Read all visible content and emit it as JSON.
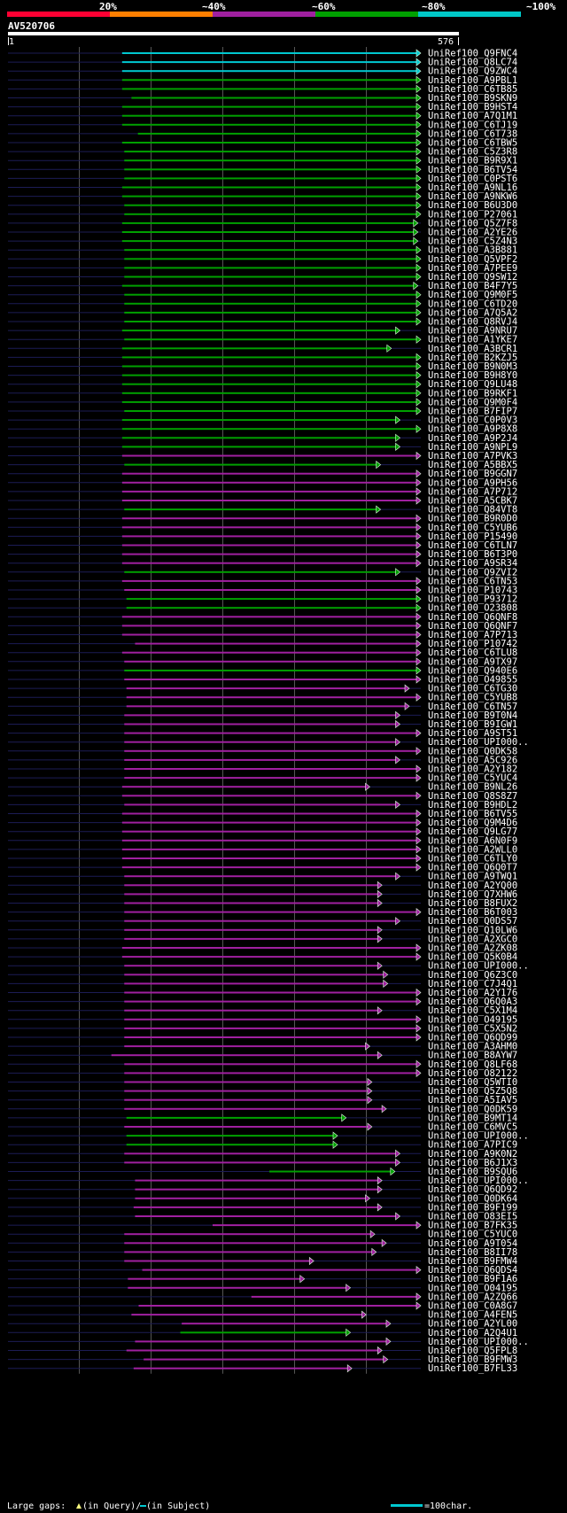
{
  "query": {
    "name": "AV520706",
    "start_label": "1",
    "end_label": "576",
    "length": 576
  },
  "legend_scale": {
    "labels": [
      "20%",
      "~40%",
      "~60%",
      "~80%",
      "~100%"
    ],
    "colors": [
      "#ff0033",
      "#ff7f00",
      "#a020a0",
      "#00a000",
      "#00c8c8"
    ]
  },
  "footer": {
    "gaps_text": "Large gaps: ",
    "query_text": "(in Query)/",
    "subject_text": " (in Subject)",
    "scale_text": "=100char."
  },
  "colors": {
    "bg": "#000000",
    "track": "#1c1c55",
    "grid": "#555555",
    "cyan": "#00c8d0",
    "green": "#00a000",
    "purple": "#a020a0"
  },
  "chart_data": {
    "type": "alignment-hits",
    "x_range": [
      1,
      576
    ],
    "hits": [
      {
        "name": "UniRef100_Q9FNC4",
        "start": 160,
        "end": 576,
        "color": "cyan"
      },
      {
        "name": "UniRef100_Q8LC74",
        "start": 160,
        "end": 576,
        "color": "cyan"
      },
      {
        "name": "UniRef100_Q9ZWC4",
        "start": 160,
        "end": 576,
        "color": "cyan"
      },
      {
        "name": "UniRef100_A9PBL1",
        "start": 160,
        "end": 576,
        "color": "green"
      },
      {
        "name": "UniRef100_C6TB85",
        "start": 160,
        "end": 576,
        "color": "green"
      },
      {
        "name": "UniRef100_B9SKN9",
        "start": 173,
        "end": 576,
        "color": "green"
      },
      {
        "name": "UniRef100_B9HST4",
        "start": 160,
        "end": 576,
        "color": "green"
      },
      {
        "name": "UniRef100_A7Q1M1",
        "start": 160,
        "end": 576,
        "color": "green"
      },
      {
        "name": "UniRef100_C6TJ19",
        "start": 160,
        "end": 576,
        "color": "green"
      },
      {
        "name": "UniRef100_C6T738",
        "start": 182,
        "end": 576,
        "color": "green"
      },
      {
        "name": "UniRef100_C6TBW5",
        "start": 160,
        "end": 576,
        "color": "green"
      },
      {
        "name": "UniRef100_C5Z3R8",
        "start": 163,
        "end": 576,
        "color": "green"
      },
      {
        "name": "UniRef100_B9R9X1",
        "start": 163,
        "end": 576,
        "color": "green"
      },
      {
        "name": "UniRef100_B6TV54",
        "start": 163,
        "end": 576,
        "color": "green"
      },
      {
        "name": "UniRef100_C0PST6",
        "start": 163,
        "end": 576,
        "color": "green"
      },
      {
        "name": "UniRef100_A9NL16",
        "start": 160,
        "end": 576,
        "color": "green"
      },
      {
        "name": "UniRef100_A9NKW6",
        "start": 160,
        "end": 576,
        "color": "green"
      },
      {
        "name": "UniRef100_B6U3D0",
        "start": 163,
        "end": 576,
        "color": "green"
      },
      {
        "name": "UniRef100_P27061",
        "start": 163,
        "end": 576,
        "color": "green"
      },
      {
        "name": "UniRef100_Q5Z7F8",
        "start": 160,
        "end": 572,
        "color": "green"
      },
      {
        "name": "UniRef100_A2YE26",
        "start": 160,
        "end": 572,
        "color": "green"
      },
      {
        "name": "UniRef100_C5Z4N3",
        "start": 160,
        "end": 572,
        "color": "green"
      },
      {
        "name": "UniRef100_A3B881",
        "start": 163,
        "end": 576,
        "color": "green"
      },
      {
        "name": "UniRef100_Q5VPF2",
        "start": 163,
        "end": 576,
        "color": "green"
      },
      {
        "name": "UniRef100_A7PEE9",
        "start": 163,
        "end": 576,
        "color": "green"
      },
      {
        "name": "UniRef100_Q9SW12",
        "start": 163,
        "end": 576,
        "color": "green"
      },
      {
        "name": "UniRef100_B4F7Y5",
        "start": 160,
        "end": 572,
        "color": "green"
      },
      {
        "name": "UniRef100_Q9M0F5",
        "start": 163,
        "end": 576,
        "color": "green"
      },
      {
        "name": "UniRef100_C6TD20",
        "start": 163,
        "end": 576,
        "color": "green"
      },
      {
        "name": "UniRef100_A7Q5A2",
        "start": 163,
        "end": 576,
        "color": "green"
      },
      {
        "name": "UniRef100_Q8RVJ4",
        "start": 163,
        "end": 576,
        "color": "green"
      },
      {
        "name": "UniRef100_A9NRU7",
        "start": 160,
        "end": 547,
        "color": "green"
      },
      {
        "name": "UniRef100_A1YKE7",
        "start": 163,
        "end": 576,
        "color": "green"
      },
      {
        "name": "UniRef100_A3BCR1",
        "start": 160,
        "end": 535,
        "color": "green"
      },
      {
        "name": "UniRef100_B2KZJ5",
        "start": 160,
        "end": 576,
        "color": "green"
      },
      {
        "name": "UniRef100_B9N0M3",
        "start": 160,
        "end": 576,
        "color": "green"
      },
      {
        "name": "UniRef100_B9H8Y0",
        "start": 160,
        "end": 576,
        "color": "green"
      },
      {
        "name": "UniRef100_Q9LU48",
        "start": 160,
        "end": 576,
        "color": "green"
      },
      {
        "name": "UniRef100_B9RKF1",
        "start": 160,
        "end": 576,
        "color": "green"
      },
      {
        "name": "UniRef100_Q9M0F4",
        "start": 160,
        "end": 576,
        "color": "green"
      },
      {
        "name": "UniRef100_B7FIP7",
        "start": 163,
        "end": 576,
        "color": "green"
      },
      {
        "name": "UniRef100_C0P0V3",
        "start": 160,
        "end": 547,
        "color": "green"
      },
      {
        "name": "UniRef100_A9P8X8",
        "start": 160,
        "end": 576,
        "color": "green"
      },
      {
        "name": "UniRef100_A9P2J4",
        "start": 160,
        "end": 547,
        "color": "green"
      },
      {
        "name": "UniRef100_A9NPL9",
        "start": 160,
        "end": 547,
        "color": "green"
      },
      {
        "name": "UniRef100_A7PVK3",
        "start": 160,
        "end": 576,
        "color": "purple"
      },
      {
        "name": "UniRef100_A5BBX5",
        "start": 163,
        "end": 520,
        "color": "green"
      },
      {
        "name": "UniRef100_B9GGN7",
        "start": 160,
        "end": 576,
        "color": "purple"
      },
      {
        "name": "UniRef100_A9PH56",
        "start": 160,
        "end": 576,
        "color": "purple"
      },
      {
        "name": "UniRef100_A7P712",
        "start": 160,
        "end": 576,
        "color": "purple"
      },
      {
        "name": "UniRef100_A5CBK7",
        "start": 160,
        "end": 576,
        "color": "purple"
      },
      {
        "name": "UniRef100_Q84VT8",
        "start": 163,
        "end": 520,
        "color": "green"
      },
      {
        "name": "UniRef100_B9R0D0",
        "start": 160,
        "end": 576,
        "color": "purple"
      },
      {
        "name": "UniRef100_C5YUB6",
        "start": 160,
        "end": 576,
        "color": "purple"
      },
      {
        "name": "UniRef100_P15490",
        "start": 160,
        "end": 576,
        "color": "purple"
      },
      {
        "name": "UniRef100_C6TLN7",
        "start": 160,
        "end": 576,
        "color": "purple"
      },
      {
        "name": "UniRef100_B6T3P0",
        "start": 160,
        "end": 576,
        "color": "purple"
      },
      {
        "name": "UniRef100_A9SR34",
        "start": 160,
        "end": 576,
        "color": "purple"
      },
      {
        "name": "UniRef100_Q9ZVI2",
        "start": 163,
        "end": 547,
        "color": "green"
      },
      {
        "name": "UniRef100_C6TN53",
        "start": 160,
        "end": 576,
        "color": "purple"
      },
      {
        "name": "UniRef100_P10743",
        "start": 163,
        "end": 576,
        "color": "purple"
      },
      {
        "name": "UniRef100_P93712",
        "start": 166,
        "end": 576,
        "color": "green"
      },
      {
        "name": "UniRef100_O23808",
        "start": 166,
        "end": 576,
        "color": "green"
      },
      {
        "name": "UniRef100_Q6QNF8",
        "start": 160,
        "end": 576,
        "color": "purple"
      },
      {
        "name": "UniRef100_Q6QNF7",
        "start": 160,
        "end": 576,
        "color": "purple"
      },
      {
        "name": "UniRef100_A7P713",
        "start": 160,
        "end": 576,
        "color": "purple"
      },
      {
        "name": "UniRef100_P10742",
        "start": 178,
        "end": 576,
        "color": "purple"
      },
      {
        "name": "UniRef100_C6TLU8",
        "start": 160,
        "end": 576,
        "color": "purple"
      },
      {
        "name": "UniRef100_A9TX97",
        "start": 163,
        "end": 576,
        "color": "purple"
      },
      {
        "name": "UniRef100_Q940E6",
        "start": 163,
        "end": 576,
        "color": "green"
      },
      {
        "name": "UniRef100_O49855",
        "start": 163,
        "end": 576,
        "color": "purple"
      },
      {
        "name": "UniRef100_C6TG30",
        "start": 166,
        "end": 560,
        "color": "purple"
      },
      {
        "name": "UniRef100_C5YUB8",
        "start": 166,
        "end": 576,
        "color": "purple"
      },
      {
        "name": "UniRef100_C6TN57",
        "start": 166,
        "end": 560,
        "color": "purple"
      },
      {
        "name": "UniRef100_B9T0N4",
        "start": 163,
        "end": 547,
        "color": "purple"
      },
      {
        "name": "UniRef100_B9IGW1",
        "start": 163,
        "end": 547,
        "color": "purple"
      },
      {
        "name": "UniRef100_A9ST51",
        "start": 163,
        "end": 576,
        "color": "purple"
      },
      {
        "name": "UniRef100_UPI000..",
        "start": 163,
        "end": 547,
        "color": "purple"
      },
      {
        "name": "UniRef100_Q0DK58",
        "start": 163,
        "end": 576,
        "color": "purple"
      },
      {
        "name": "UniRef100_A5C926",
        "start": 163,
        "end": 547,
        "color": "purple"
      },
      {
        "name": "UniRef100_A2Y182",
        "start": 163,
        "end": 576,
        "color": "purple"
      },
      {
        "name": "UniRef100_C5YUC4",
        "start": 163,
        "end": 576,
        "color": "purple"
      },
      {
        "name": "UniRef100_B9NL26",
        "start": 160,
        "end": 505,
        "color": "purple"
      },
      {
        "name": "UniRef100_Q8S8Z7",
        "start": 160,
        "end": 576,
        "color": "purple"
      },
      {
        "name": "UniRef100_B9HDL2",
        "start": 163,
        "end": 547,
        "color": "purple"
      },
      {
        "name": "UniRef100_B6TV55",
        "start": 160,
        "end": 576,
        "color": "purple"
      },
      {
        "name": "UniRef100_Q9M4D6",
        "start": 160,
        "end": 576,
        "color": "purple"
      },
      {
        "name": "UniRef100_Q9LG77",
        "start": 160,
        "end": 576,
        "color": "purple"
      },
      {
        "name": "UniRef100_A6N0F9",
        "start": 160,
        "end": 576,
        "color": "purple"
      },
      {
        "name": "UniRef100_A2WLL0",
        "start": 160,
        "end": 576,
        "color": "purple"
      },
      {
        "name": "UniRef100_C6TLY0",
        "start": 160,
        "end": 576,
        "color": "purple"
      },
      {
        "name": "UniRef100_Q6Q0T7",
        "start": 160,
        "end": 576,
        "color": "purple"
      },
      {
        "name": "UniRef100_A9TWQ1",
        "start": 163,
        "end": 547,
        "color": "purple"
      },
      {
        "name": "UniRef100_A2YQ00",
        "start": 163,
        "end": 522,
        "color": "purple"
      },
      {
        "name": "UniRef100_Q7XHW6",
        "start": 163,
        "end": 522,
        "color": "purple"
      },
      {
        "name": "UniRef100_B8FUX2",
        "start": 163,
        "end": 522,
        "color": "purple"
      },
      {
        "name": "UniRef100_B6T003",
        "start": 163,
        "end": 576,
        "color": "purple"
      },
      {
        "name": "UniRef100_Q0DS57",
        "start": 163,
        "end": 547,
        "color": "purple"
      },
      {
        "name": "UniRef100_Q10LW6",
        "start": 163,
        "end": 522,
        "color": "purple"
      },
      {
        "name": "UniRef100_A2XGC0",
        "start": 163,
        "end": 522,
        "color": "purple"
      },
      {
        "name": "UniRef100_A2ZK08",
        "start": 160,
        "end": 576,
        "color": "purple"
      },
      {
        "name": "UniRef100_Q5K0B4",
        "start": 160,
        "end": 576,
        "color": "purple"
      },
      {
        "name": "UniRef100_UPI000..",
        "start": 163,
        "end": 522,
        "color": "purple"
      },
      {
        "name": "UniRef100_Q6Z3C0",
        "start": 163,
        "end": 530,
        "color": "purple"
      },
      {
        "name": "UniRef100_C7J4Q1",
        "start": 163,
        "end": 530,
        "color": "purple"
      },
      {
        "name": "UniRef100_A2Y176",
        "start": 163,
        "end": 576,
        "color": "purple"
      },
      {
        "name": "UniRef100_Q6Q0A3",
        "start": 163,
        "end": 576,
        "color": "purple"
      },
      {
        "name": "UniRef100_C5X1M4",
        "start": 163,
        "end": 522,
        "color": "purple"
      },
      {
        "name": "UniRef100_O49195",
        "start": 163,
        "end": 576,
        "color": "purple"
      },
      {
        "name": "UniRef100_C5X5N2",
        "start": 163,
        "end": 576,
        "color": "purple"
      },
      {
        "name": "UniRef100_Q6QD99",
        "start": 163,
        "end": 576,
        "color": "purple"
      },
      {
        "name": "UniRef100_A3AHM0",
        "start": 163,
        "end": 505,
        "color": "purple"
      },
      {
        "name": "UniRef100_B8AYW7",
        "start": 145,
        "end": 522,
        "color": "purple"
      },
      {
        "name": "UniRef100_Q8LF68",
        "start": 163,
        "end": 576,
        "color": "purple"
      },
      {
        "name": "UniRef100_O82122",
        "start": 163,
        "end": 576,
        "color": "purple"
      },
      {
        "name": "UniRef100_Q5WTI0",
        "start": 163,
        "end": 508,
        "color": "purple"
      },
      {
        "name": "UniRef100_Q5Z5Q8",
        "start": 163,
        "end": 508,
        "color": "purple"
      },
      {
        "name": "UniRef100_A5IAV5",
        "start": 163,
        "end": 508,
        "color": "purple"
      },
      {
        "name": "UniRef100_Q0DK59",
        "start": 163,
        "end": 528,
        "color": "purple"
      },
      {
        "name": "UniRef100_B9MT14",
        "start": 166,
        "end": 472,
        "color": "green"
      },
      {
        "name": "UniRef100_C6MVC5",
        "start": 163,
        "end": 508,
        "color": "purple"
      },
      {
        "name": "UniRef100_UPI000..",
        "start": 166,
        "end": 460,
        "color": "green"
      },
      {
        "name": "UniRef100_A7PIC9",
        "start": 166,
        "end": 460,
        "color": "green"
      },
      {
        "name": "UniRef100_A9K0N2",
        "start": 163,
        "end": 547,
        "color": "purple"
      },
      {
        "name": "UniRef100_B6J1X3",
        "start": 163,
        "end": 547,
        "color": "purple"
      },
      {
        "name": "UniRef100_B9SQU6",
        "start": 365,
        "end": 540,
        "color": "green"
      },
      {
        "name": "UniRef100_UPI000..",
        "start": 178,
        "end": 522,
        "color": "purple"
      },
      {
        "name": "UniRef100_Q6QD92",
        "start": 178,
        "end": 522,
        "color": "purple"
      },
      {
        "name": "UniRef100_Q0DK64",
        "start": 178,
        "end": 505,
        "color": "purple"
      },
      {
        "name": "UniRef100_B9F199",
        "start": 176,
        "end": 522,
        "color": "purple"
      },
      {
        "name": "UniRef100_O83EI5",
        "start": 178,
        "end": 547,
        "color": "purple"
      },
      {
        "name": "UniRef100_B7FK35",
        "start": 286,
        "end": 576,
        "color": "purple"
      },
      {
        "name": "UniRef100_C5YUC0",
        "start": 163,
        "end": 512,
        "color": "purple"
      },
      {
        "name": "UniRef100_A9T054",
        "start": 163,
        "end": 528,
        "color": "purple"
      },
      {
        "name": "UniRef100_B8II78",
        "start": 163,
        "end": 514,
        "color": "purple"
      },
      {
        "name": "UniRef100_B9FMW4",
        "start": 163,
        "end": 427,
        "color": "purple"
      },
      {
        "name": "UniRef100_Q6QDS4",
        "start": 188,
        "end": 576,
        "color": "purple"
      },
      {
        "name": "UniRef100_B9F1A6",
        "start": 168,
        "end": 414,
        "color": "purple"
      },
      {
        "name": "UniRef100_O04195",
        "start": 168,
        "end": 478,
        "color": "purple"
      },
      {
        "name": "UniRef100_A2ZQ66",
        "start": 340,
        "end": 576,
        "color": "purple"
      },
      {
        "name": "UniRef100_C0A8G7",
        "start": 183,
        "end": 576,
        "color": "purple"
      },
      {
        "name": "UniRef100_A4FEN5",
        "start": 173,
        "end": 500,
        "color": "purple"
      },
      {
        "name": "UniRef100_A2YL00",
        "start": 243,
        "end": 534,
        "color": "purple"
      },
      {
        "name": "UniRef100_A2Q4U1",
        "start": 241,
        "end": 478,
        "color": "green"
      },
      {
        "name": "UniRef100_UPI000..",
        "start": 178,
        "end": 534,
        "color": "purple"
      },
      {
        "name": "UniRef100_Q5FPL8",
        "start": 166,
        "end": 522,
        "color": "purple"
      },
      {
        "name": "UniRef100_B9FMW3",
        "start": 190,
        "end": 530,
        "color": "purple"
      },
      {
        "name": "UniRef100_B7FL33",
        "start": 176,
        "end": 480,
        "color": "purple"
      }
    ]
  }
}
